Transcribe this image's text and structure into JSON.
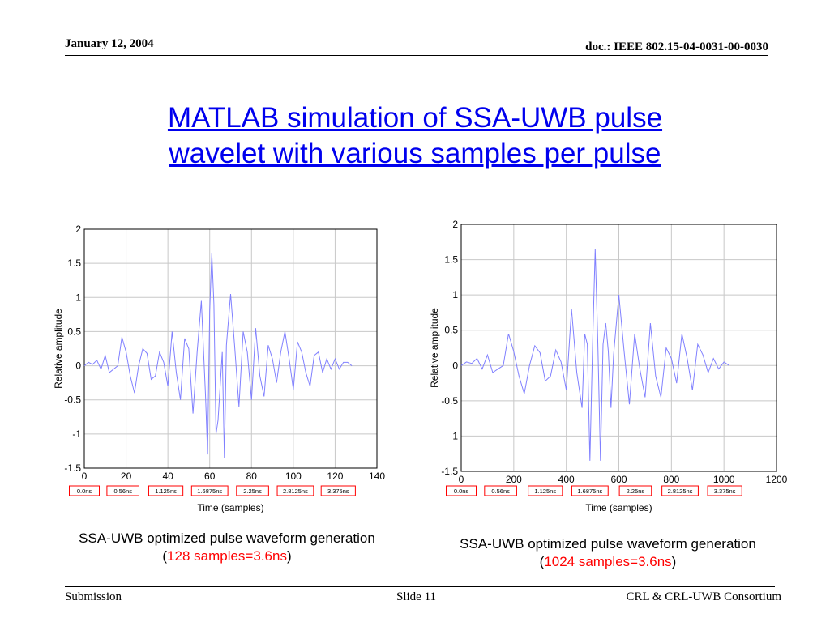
{
  "header": {
    "date": "January 12, 2004",
    "doc": "doc.: IEEE 802.15-04-0031-00-0030"
  },
  "title": {
    "line1": "MATLAB simulation of SSA-UWB pulse",
    "line2": "wavelet with various samples per pulse",
    "color": "#0000ee"
  },
  "chart_data": [
    {
      "type": "line",
      "xlabel": "Time (samples)",
      "ylabel": "Relative amplitude",
      "xlim": [
        0,
        140
      ],
      "ylim": [
        -1.5,
        2
      ],
      "xticks": [
        "0",
        "20",
        "40",
        "60",
        "80",
        "100",
        "120",
        "140"
      ],
      "yticks": [
        "-1.5",
        "-1",
        "-0.5",
        "0",
        "0.5",
        "1",
        "1.5",
        "2"
      ],
      "grid": true,
      "line_color": "#8080ff",
      "time_markers": {
        "x": [
          0,
          18.5,
          39,
          60,
          80.5,
          101,
          121.5
        ],
        "labels": [
          "0.0ns",
          "0.56ns",
          "1.125ns",
          "1.6875ns",
          "2.25ns",
          "2.8125ns",
          "3.375ns"
        ],
        "box_color": "#ff0000"
      },
      "series": [
        {
          "x": [
            0,
            2,
            4,
            6,
            8,
            10,
            12,
            14,
            16,
            18,
            20,
            22,
            24,
            26,
            28,
            30,
            32,
            34,
            36,
            38,
            40,
            42,
            44,
            46,
            48,
            50,
            52,
            54,
            56,
            58,
            59,
            60,
            61,
            62,
            63,
            64,
            65,
            66,
            67,
            68,
            70,
            72,
            74,
            76,
            78,
            80,
            82,
            84,
            86,
            88,
            90,
            92,
            94,
            96,
            98,
            100,
            102,
            104,
            106,
            108,
            110,
            112,
            114,
            116,
            118,
            120,
            122,
            124,
            126,
            128
          ],
          "y": [
            0,
            0.05,
            0.02,
            0.08,
            -0.05,
            0.15,
            -0.1,
            -0.05,
            0,
            0.42,
            0.2,
            -0.15,
            -0.4,
            0,
            0.25,
            0.18,
            -0.2,
            -0.15,
            0.2,
            0.05,
            -0.3,
            0.5,
            -0.1,
            -0.5,
            0.4,
            0.25,
            -0.7,
            0.2,
            0.95,
            -0.45,
            -1.3,
            0.8,
            1.65,
            0.9,
            -1.0,
            -0.8,
            -0.3,
            0.2,
            -1.35,
            0.3,
            1.05,
            0.25,
            -0.6,
            0.5,
            0.2,
            -0.5,
            0.55,
            -0.15,
            -0.45,
            0.3,
            0.1,
            -0.25,
            0.2,
            0.5,
            0.1,
            -0.35,
            0.35,
            0.2,
            -0.1,
            -0.3,
            0.15,
            0.2,
            -0.1,
            0.1,
            -0.05,
            0.1,
            -0.05,
            0.05,
            0.05,
            0
          ]
        }
      ]
    },
    {
      "type": "line",
      "xlabel": "Time (samples)",
      "ylabel": "Relative amplitude",
      "xlim": [
        0,
        1200
      ],
      "ylim": [
        -1.5,
        2
      ],
      "xticks": [
        "0",
        "200",
        "400",
        "600",
        "800",
        "1000",
        "1200"
      ],
      "yticks": [
        "-1.5",
        "-1",
        "-0.5",
        "0",
        "0.5",
        "1",
        "1.5",
        "2"
      ],
      "grid": true,
      "line_color": "#8080ff",
      "time_markers": {
        "x": [
          0,
          150,
          320,
          490,
          663,
          833,
          1003
        ],
        "labels": [
          "0.0ns",
          "0.56ns",
          "1.125ns",
          "1.6875ns",
          "2.25ns",
          "2.8125ns",
          "3.375ns"
        ],
        "box_color": "#ff0000"
      },
      "series": [
        {
          "x": [
            0,
            20,
            40,
            60,
            80,
            100,
            120,
            140,
            160,
            180,
            200,
            220,
            240,
            260,
            280,
            300,
            320,
            340,
            360,
            380,
            400,
            420,
            440,
            460,
            470,
            480,
            490,
            500,
            510,
            520,
            530,
            540,
            550,
            560,
            570,
            580,
            600,
            620,
            640,
            660,
            680,
            700,
            720,
            740,
            760,
            780,
            800,
            820,
            840,
            860,
            880,
            900,
            920,
            940,
            960,
            980,
            1000,
            1020
          ],
          "y": [
            0,
            0.05,
            0.03,
            0.1,
            -0.05,
            0.15,
            -0.1,
            -0.05,
            0,
            0.45,
            0.2,
            -0.15,
            -0.4,
            0,
            0.28,
            0.18,
            -0.22,
            -0.15,
            0.22,
            0.05,
            -0.35,
            0.8,
            -0.1,
            -0.6,
            0.45,
            0.3,
            -1.35,
            0.3,
            1.65,
            0.3,
            -1.35,
            0.3,
            0.6,
            0.2,
            -0.6,
            0.15,
            1.0,
            0.2,
            -0.55,
            0.45,
            -0.05,
            -0.45,
            0.6,
            -0.15,
            -0.45,
            0.25,
            0.1,
            -0.25,
            0.45,
            0.1,
            -0.35,
            0.3,
            0.15,
            -0.1,
            0.1,
            -0.05,
            0.05,
            0
          ]
        }
      ]
    }
  ],
  "captions": [
    {
      "line1": "SSA-UWB optimized pulse waveform generation",
      "open": "(",
      "highlight": "128 samples=3.6ns",
      "close": ")"
    },
    {
      "line1": "SSA-UWB optimized pulse waveform generation",
      "open": "(",
      "highlight": "1024 samples=3.6ns",
      "close": ")"
    }
  ],
  "footer": {
    "left": "Submission",
    "center": "Slide 11",
    "right": "CRL & CRL-UWB Consortium"
  }
}
